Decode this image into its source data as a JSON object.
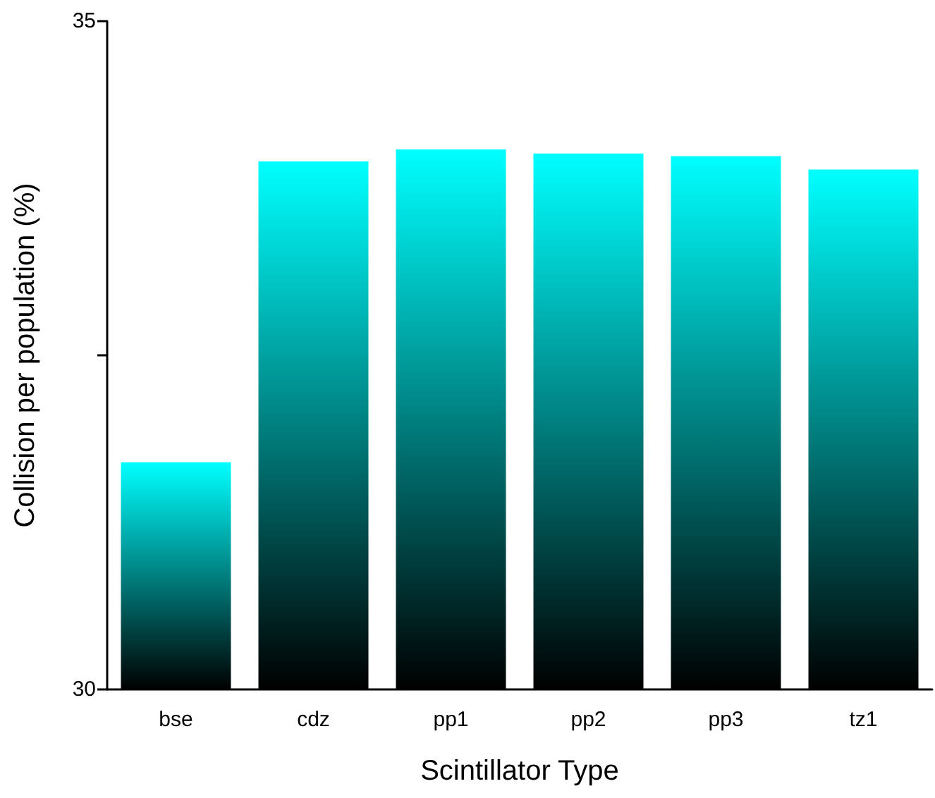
{
  "chart_data": {
    "type": "bar",
    "xlabel": "Scintillator Type",
    "ylabel": "Collision per population (%)",
    "categories": [
      "bse",
      "cdz",
      "pp1",
      "pp2",
      "pp3",
      "tz1"
    ],
    "values": [
      31.7,
      33.95,
      34.04,
      34.01,
      33.99,
      33.89
    ],
    "color": "#00ffff",
    "ylim": [
      30,
      35
    ],
    "yticks": [
      30,
      {
        "value": 32.5,
        "label": null
      },
      35
    ]
  }
}
